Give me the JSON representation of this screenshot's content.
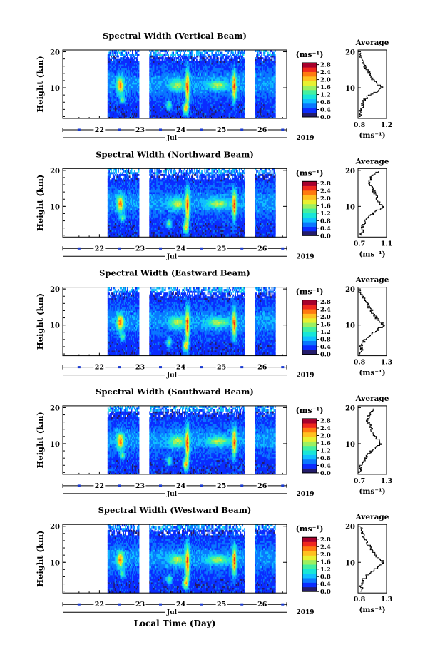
{
  "figure": {
    "xlabel": "Local Time (Day)",
    "month_label": "Jul",
    "year_label": "2019",
    "ylabel": "Height (km)",
    "colorbar_unit": "(ms⁻¹)",
    "average_title": "Average",
    "average_xlabel": "(ms⁻¹)"
  },
  "colormap": [
    "#241c6b",
    "#0b2cff",
    "#0a78ff",
    "#10c0ff",
    "#18e6d8",
    "#44f0a0",
    "#9cf060",
    "#e8f030",
    "#ffc020",
    "#ff7a10",
    "#f0281e",
    "#a8002c"
  ],
  "chart_data": [
    {
      "type": "heatmap",
      "title": "Spectral Width (Vertical Beam)",
      "x_ticks": [
        "22",
        "23",
        "24",
        "25",
        "26"
      ],
      "y_ticks": [
        "10",
        "20"
      ],
      "ylim": [
        1.5,
        20.5
      ],
      "data_gaps_day": [
        [
          22.95,
          23.2
        ],
        [
          25.55,
          25.8
        ]
      ],
      "colorbar_ticks": [
        "0.0",
        "0.4",
        "0.8",
        "1.2",
        "1.6",
        "2.0",
        "2.4",
        "2.8"
      ],
      "colorbar_range": [
        0,
        2.9
      ],
      "average_profile": {
        "xlim": [
          0.8,
          1.2
        ],
        "x_ticks": [
          "0.8",
          "1.2"
        ],
        "y_ticks": [
          "10",
          "20"
        ],
        "height_km": [
          2,
          3,
          4,
          5,
          6,
          7,
          8,
          9,
          10,
          11,
          12,
          13,
          14,
          15,
          16,
          17,
          18,
          19,
          20
        ],
        "width_ms": [
          0.82,
          0.84,
          0.83,
          0.87,
          0.86,
          0.9,
          0.96,
          1.05,
          1.14,
          1.09,
          1.02,
          0.99,
          0.97,
          0.93,
          0.9,
          0.87,
          0.85,
          0.84,
          0.82
        ]
      }
    },
    {
      "type": "heatmap",
      "title": "Spectral Width (Northward Beam)",
      "x_ticks": [
        "22",
        "23",
        "24",
        "25",
        "26"
      ],
      "y_ticks": [
        "10",
        "20"
      ],
      "ylim": [
        1.5,
        20.5
      ],
      "data_gaps_day": [
        [
          22.95,
          23.2
        ],
        [
          25.55,
          25.8
        ]
      ],
      "colorbar_ticks": [
        "0.0",
        "0.4",
        "0.8",
        "1.2",
        "1.6",
        "2.0",
        "2.4",
        "2.8"
      ],
      "colorbar_range": [
        0,
        2.9
      ],
      "average_profile": {
        "xlim": [
          0.7,
          1.1
        ],
        "x_ticks": [
          "0.7",
          "1.1"
        ],
        "y_ticks": [
          "10",
          "20"
        ],
        "height_km": [
          2,
          3,
          4,
          5,
          6,
          7,
          8,
          9,
          10,
          11,
          12,
          13,
          14,
          15,
          16,
          17,
          18,
          19,
          20
        ],
        "width_ms": [
          0.74,
          0.76,
          0.75,
          0.78,
          0.8,
          0.84,
          0.9,
          0.98,
          1.04,
          1.0,
          0.96,
          0.95,
          0.93,
          0.92,
          0.88,
          0.86,
          0.88,
          0.94,
          0.99
        ]
      }
    },
    {
      "type": "heatmap",
      "title": "Spectral Width (Eastward Beam)",
      "x_ticks": [
        "22",
        "23",
        "24",
        "25",
        "26"
      ],
      "y_ticks": [
        "10",
        "20"
      ],
      "ylim": [
        1.5,
        20.5
      ],
      "data_gaps_day": [
        [
          22.95,
          23.2
        ],
        [
          25.55,
          25.8
        ]
      ],
      "colorbar_ticks": [
        "0.0",
        "0.4",
        "0.8",
        "1.2",
        "1.6",
        "2.0",
        "2.4",
        "2.8"
      ],
      "colorbar_range": [
        0,
        2.9
      ],
      "average_profile": {
        "xlim": [
          0.8,
          1.3
        ],
        "x_ticks": [
          "0.8",
          "1.3"
        ],
        "y_ticks": [
          "10",
          "20"
        ],
        "height_km": [
          2,
          3,
          4,
          5,
          6,
          7,
          8,
          9,
          10,
          11,
          12,
          13,
          14,
          15,
          16,
          17,
          18,
          19,
          20
        ],
        "width_ms": [
          0.84,
          0.86,
          0.85,
          0.88,
          0.92,
          0.98,
          1.06,
          1.16,
          1.25,
          1.2,
          1.12,
          1.08,
          1.04,
          1.0,
          0.96,
          0.92,
          0.88,
          0.85,
          0.83
        ]
      }
    },
    {
      "type": "heatmap",
      "title": "Spectral Width (Southward Beam)",
      "x_ticks": [
        "22",
        "23",
        "24",
        "25",
        "26"
      ],
      "y_ticks": [
        "10",
        "20"
      ],
      "ylim": [
        1.5,
        20.5
      ],
      "data_gaps_day": [
        [
          22.95,
          23.2
        ],
        [
          25.55,
          25.8
        ]
      ],
      "colorbar_ticks": [
        "0.0",
        "0.4",
        "0.8",
        "1.2",
        "1.6",
        "2.0",
        "2.4",
        "2.8"
      ],
      "colorbar_range": [
        0,
        2.9
      ],
      "average_profile": {
        "xlim": [
          0.7,
          1.3
        ],
        "x_ticks": [
          "0.7",
          "1.3"
        ],
        "y_ticks": [
          "10",
          "20"
        ],
        "height_km": [
          2,
          3,
          4,
          5,
          6,
          7,
          8,
          9,
          10,
          11,
          12,
          13,
          14,
          15,
          16,
          17,
          18,
          19,
          20
        ],
        "width_ms": [
          0.74,
          0.77,
          0.75,
          0.8,
          0.84,
          0.9,
          0.98,
          1.08,
          1.18,
          1.14,
          1.06,
          1.02,
          0.98,
          0.95,
          0.92,
          0.9,
          0.93,
          0.98,
          1.02
        ]
      }
    },
    {
      "type": "heatmap",
      "title": "Spectral Width (Westward Beam)",
      "x_ticks": [
        "22",
        "23",
        "24",
        "25",
        "26"
      ],
      "y_ticks": [
        "10",
        "20"
      ],
      "ylim": [
        1.5,
        20.5
      ],
      "data_gaps_day": [
        [
          22.95,
          23.2
        ],
        [
          25.55,
          25.8
        ]
      ],
      "colorbar_ticks": [
        "0.0",
        "0.4",
        "0.8",
        "1.2",
        "1.6",
        "2.0",
        "2.4",
        "2.8"
      ],
      "colorbar_range": [
        0,
        2.9
      ],
      "average_profile": {
        "xlim": [
          0.8,
          1.3
        ],
        "x_ticks": [
          "0.8",
          "1.3"
        ],
        "y_ticks": [
          "10",
          "20"
        ],
        "height_km": [
          2,
          3,
          4,
          5,
          6,
          7,
          8,
          9,
          10,
          11,
          12,
          13,
          14,
          15,
          16,
          17,
          18,
          19,
          20
        ],
        "width_ms": [
          0.84,
          0.86,
          0.85,
          0.88,
          0.93,
          0.99,
          1.07,
          1.17,
          1.25,
          1.2,
          1.12,
          1.07,
          1.02,
          0.98,
          0.94,
          0.9,
          0.88,
          0.86,
          0.84
        ]
      }
    }
  ]
}
